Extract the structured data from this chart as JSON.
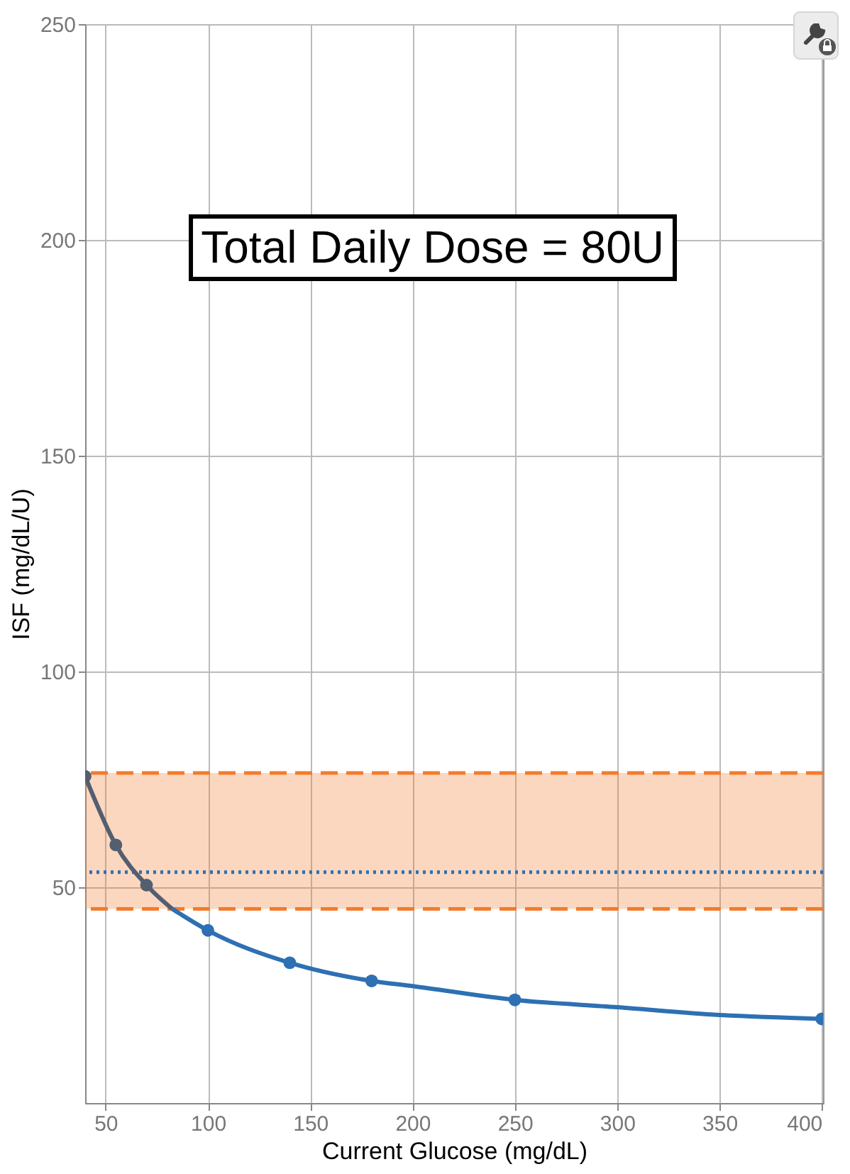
{
  "chart_data": {
    "type": "line",
    "xlabel": "Current Glucose (mg/dL)",
    "ylabel": "ISF (mg/dL/U)",
    "annotations": [
      "Total Daily Dose = 80U"
    ],
    "xlim": [
      40,
      400.6
    ],
    "ylim": [
      0,
      250
    ],
    "xticks": [
      50,
      100,
      150,
      200,
      250,
      300,
      350,
      400
    ],
    "yticks": [
      50,
      100,
      150,
      200,
      250
    ],
    "grid": true,
    "bands": [
      {
        "axis": "y",
        "from": 45,
        "to": 76.5,
        "color": "#f47b2b"
      }
    ],
    "ref_lines": [
      {
        "axis": "y",
        "value": 76.5,
        "color": "#f47b2b",
        "line_style": "dashed"
      },
      {
        "axis": "y",
        "value": 45,
        "color": "#f47b2b",
        "line_style": "dashed"
      },
      {
        "axis": "y",
        "value": 53.5,
        "color": "#2d70b3",
        "line_style": "dotted"
      }
    ],
    "series": [
      {
        "color": "#535f70",
        "x": [
          40,
          55,
          70,
          82.5
        ],
        "values": [
          75.7,
          59.8,
          50.5,
          45
        ],
        "marker": "none"
      },
      {
        "color": "#2d70b3",
        "x": [
          82.5,
          100,
          140,
          180,
          200,
          250,
          300,
          350,
          400
        ],
        "values": [
          45,
          40,
          32.5,
          28.3,
          27.1,
          23.9,
          22.2,
          20.4,
          19.5
        ],
        "marker": "none"
      },
      {
        "type": "scatter",
        "color": "#535f70",
        "x": [
          40,
          55,
          70
        ],
        "values": [
          75.7,
          59.8,
          50.5
        ],
        "marker": "circle"
      },
      {
        "type": "scatter",
        "color": "#2d70b3",
        "x": [
          100,
          140,
          180,
          250,
          400
        ],
        "values": [
          40,
          32.5,
          28.3,
          23.9,
          19.5
        ],
        "marker": "circle"
      }
    ]
  }
}
